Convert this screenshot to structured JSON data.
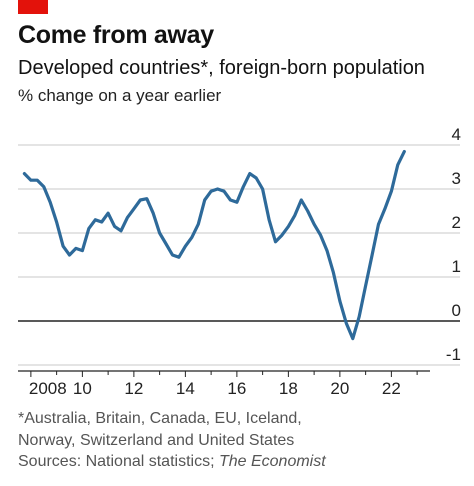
{
  "header": {
    "title": "Come from away",
    "subtitle": "Developed countries*, foreign-born population",
    "unit": "% change on a year earlier"
  },
  "footer": {
    "footnote_line1": "*Australia, Britain, Canada, EU, Iceland,",
    "footnote_line2": "Norway, Switzerland and United States",
    "sources_prefix": "Sources: National statistics; ",
    "sources_italic": "The Economist"
  },
  "colors": {
    "line": "#2e6a9a",
    "grid": "#c8c8c8",
    "zero": "#222222",
    "accent": "#e3120b"
  },
  "chart_data": {
    "type": "line",
    "title": "Come from away",
    "ylabel": "% change on a year earlier",
    "xlim": [
      2007.5,
      2023.5
    ],
    "ylim": [
      -1,
      4
    ],
    "yticks": [
      -1,
      0,
      1,
      2,
      3,
      4
    ],
    "ytick_labels": [
      "-1",
      "0",
      "1",
      "2",
      "3",
      "4"
    ],
    "xticks": [
      2008,
      2010,
      2012,
      2014,
      2016,
      2018,
      2020,
      2022
    ],
    "xtick_labels": [
      "2008",
      "10",
      "12",
      "14",
      "16",
      "18",
      "20",
      "22"
    ],
    "grid": true,
    "series": [
      {
        "x": [
          2007.75,
          2008.0,
          2008.25,
          2008.5,
          2008.75,
          2009.0,
          2009.25,
          2009.5,
          2009.75,
          2010.0,
          2010.25,
          2010.5,
          2010.75,
          2011.0,
          2011.25,
          2011.5,
          2011.75,
          2012.0,
          2012.25,
          2012.5,
          2012.75,
          2013.0,
          2013.25,
          2013.5,
          2013.75,
          2014.0,
          2014.25,
          2014.5,
          2014.75,
          2015.0,
          2015.25,
          2015.5,
          2015.75,
          2016.0,
          2016.25,
          2016.5,
          2016.75,
          2017.0,
          2017.25,
          2017.5,
          2017.75,
          2018.0,
          2018.25,
          2018.5,
          2018.75,
          2019.0,
          2019.25,
          2019.5,
          2019.75,
          2020.0,
          2020.25,
          2020.5,
          2020.75,
          2021.0,
          2021.25,
          2021.5,
          2021.75,
          2022.0,
          2022.25,
          2022.5
        ],
        "values": [
          3.35,
          3.2,
          3.2,
          3.05,
          2.7,
          2.25,
          1.7,
          1.5,
          1.65,
          1.6,
          2.1,
          2.3,
          2.25,
          2.45,
          2.15,
          2.05,
          2.35,
          2.55,
          2.75,
          2.78,
          2.45,
          2.0,
          1.75,
          1.5,
          1.45,
          1.7,
          1.9,
          2.2,
          2.75,
          2.95,
          3.0,
          2.95,
          2.75,
          2.7,
          3.05,
          3.35,
          3.25,
          3.0,
          2.3,
          1.8,
          1.95,
          2.15,
          2.4,
          2.75,
          2.5,
          2.2,
          1.95,
          1.6,
          1.1,
          0.45,
          -0.05,
          -0.4,
          0.1,
          0.8,
          1.5,
          2.2,
          2.55,
          2.95,
          3.55,
          3.85
        ]
      }
    ]
  }
}
